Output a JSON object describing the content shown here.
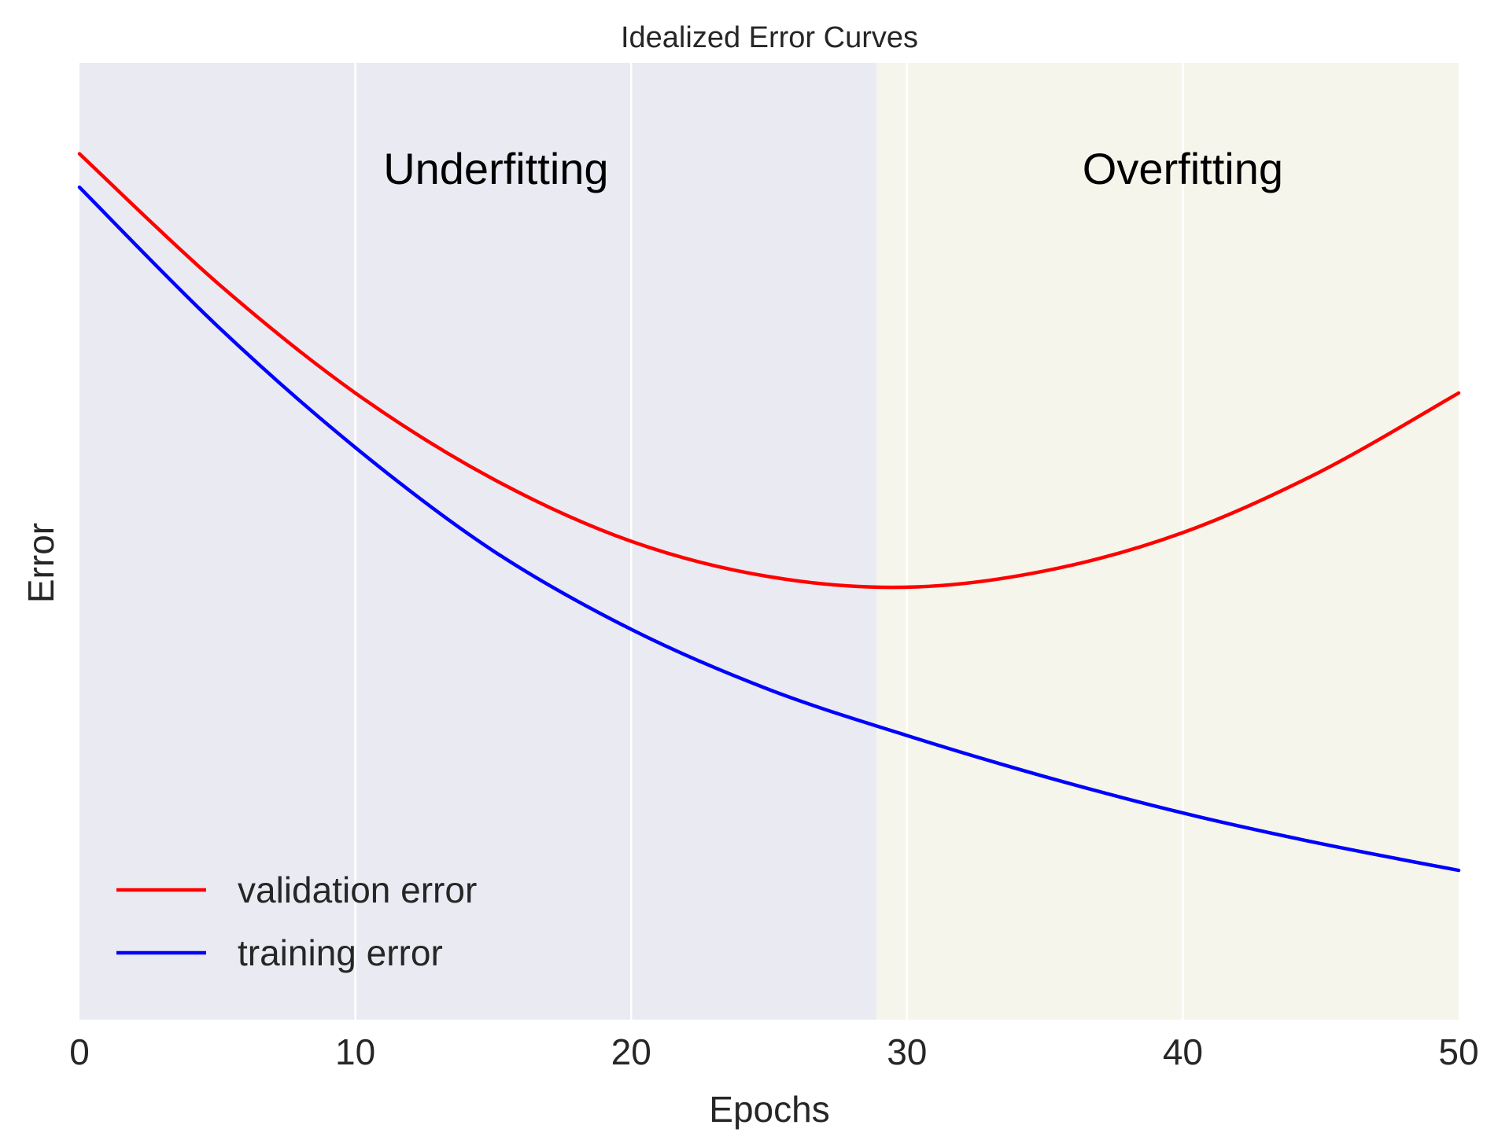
{
  "chart_data": {
    "type": "line",
    "title": "Idealized Error Curves",
    "xlabel": "Epochs",
    "ylabel": "Error",
    "xlim": [
      0,
      50
    ],
    "ylim": [
      0,
      1
    ],
    "xticks": [
      0,
      10,
      20,
      30,
      40,
      50
    ],
    "yticks": [],
    "grid": true,
    "legend_position": "lower-left",
    "regions": [
      {
        "label": "Underfitting",
        "x_range": [
          0,
          28.9
        ],
        "color": "#eaeaf2"
      },
      {
        "label": "Overfitting",
        "x_range": [
          28.9,
          50
        ],
        "color": "#f5f5eb"
      }
    ],
    "series": [
      {
        "name": "validation error",
        "color": "#ff0000",
        "x": [
          0,
          5,
          10,
          15,
          20,
          25,
          30,
          35,
          40,
          45,
          50
        ],
        "y": [
          0.905,
          0.77,
          0.655,
          0.565,
          0.5,
          0.463,
          0.452,
          0.469,
          0.509,
          0.573,
          0.655
        ]
      },
      {
        "name": "training error",
        "color": "#0000ff",
        "x": [
          0,
          5,
          10,
          15,
          20,
          25,
          30,
          35,
          40,
          45,
          50
        ],
        "y": [
          0.87,
          0.725,
          0.598,
          0.49,
          0.408,
          0.345,
          0.297,
          0.254,
          0.216,
          0.184,
          0.156
        ]
      }
    ]
  }
}
